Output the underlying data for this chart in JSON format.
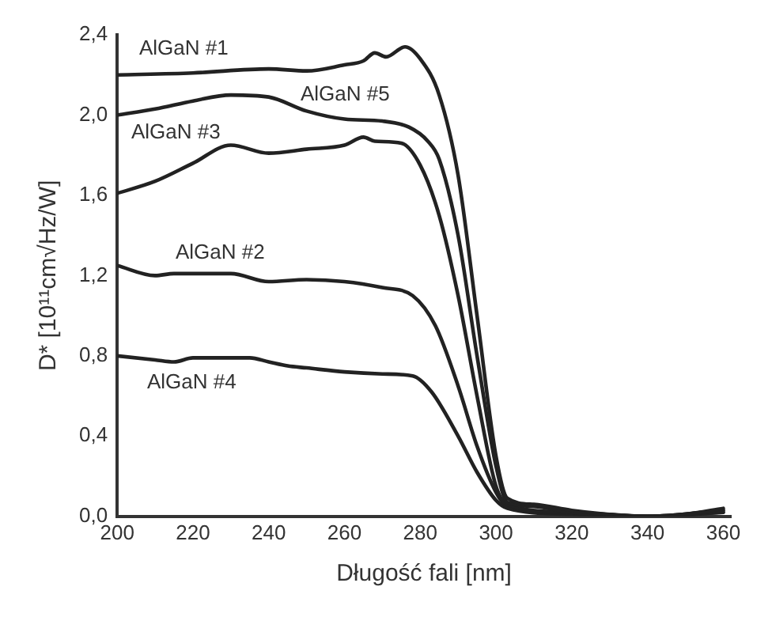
{
  "chart_data": {
    "type": "line",
    "xlabel": "Długość fali [nm]",
    "ylabel": "D* [10¹¹cm√Hz/W]",
    "xlim": [
      200,
      362
    ],
    "xticks": [
      200,
      220,
      240,
      260,
      280,
      300,
      320,
      340,
      360
    ],
    "ylim": [
      0,
      2.4
    ],
    "yticks": [
      {
        "value": 0,
        "label": "0,0"
      },
      {
        "value": 0.4,
        "label": "0,4"
      },
      {
        "value": 0.8,
        "label": "0,8"
      },
      {
        "value": 1.2,
        "label": "1,2"
      },
      {
        "value": 1.6,
        "label": "1,6"
      },
      {
        "value": 2.0,
        "label": "2,0"
      },
      {
        "value": 2.4,
        "label": "2,4"
      }
    ],
    "grid": false,
    "legend": false,
    "marker": "none",
    "line_style": "solid",
    "series": [
      {
        "name": "AlGaN #1",
        "color": "#222222",
        "x": [
          200,
          220,
          240,
          250,
          260,
          265,
          268,
          271,
          276,
          280,
          285,
          290,
          295,
          300,
          303,
          310,
          320,
          330,
          340,
          350,
          360
        ],
        "values": [
          2.2,
          2.21,
          2.23,
          2.22,
          2.25,
          2.27,
          2.31,
          2.29,
          2.34,
          2.28,
          2.1,
          1.7,
          1.0,
          0.3,
          0.09,
          0.06,
          0.03,
          0.01,
          0.0,
          0.01,
          0.04
        ]
      },
      {
        "name": "AlGaN #5",
        "color": "#222222",
        "x": [
          200,
          210,
          220,
          230,
          240,
          250,
          260,
          270,
          277,
          282,
          285,
          290,
          295,
          300,
          303,
          310,
          320,
          340,
          360
        ],
        "values": [
          2.0,
          2.03,
          2.07,
          2.1,
          2.09,
          2.02,
          1.98,
          1.97,
          1.94,
          1.87,
          1.78,
          1.4,
          0.8,
          0.25,
          0.07,
          0.05,
          0.02,
          0.0,
          0.03
        ]
      },
      {
        "name": "AlGaN #3",
        "color": "#222222",
        "x": [
          200,
          210,
          220,
          230,
          240,
          250,
          260,
          265,
          268,
          275,
          280,
          285,
          290,
          295,
          300,
          303,
          320,
          340,
          360
        ],
        "values": [
          1.61,
          1.67,
          1.76,
          1.85,
          1.81,
          1.83,
          1.85,
          1.89,
          1.87,
          1.86,
          1.75,
          1.5,
          1.1,
          0.6,
          0.15,
          0.06,
          0.02,
          0.0,
          0.03
        ]
      },
      {
        "name": "AlGaN #2",
        "color": "#222222",
        "x": [
          200,
          210,
          215,
          230,
          240,
          250,
          260,
          270,
          278,
          284,
          290,
          295,
          300,
          303,
          320,
          340,
          360
        ],
        "values": [
          1.25,
          1.2,
          1.21,
          1.21,
          1.17,
          1.18,
          1.17,
          1.14,
          1.1,
          0.95,
          0.65,
          0.35,
          0.12,
          0.05,
          0.02,
          0.0,
          0.02
        ]
      },
      {
        "name": "AlGaN #4",
        "color": "#222222",
        "x": [
          200,
          210,
          215,
          220,
          235,
          240,
          245,
          250,
          260,
          270,
          278,
          283,
          290,
          295,
          300,
          303,
          320,
          340,
          360
        ],
        "values": [
          0.8,
          0.78,
          0.77,
          0.79,
          0.79,
          0.77,
          0.75,
          0.74,
          0.72,
          0.71,
          0.7,
          0.62,
          0.4,
          0.22,
          0.08,
          0.04,
          0.01,
          0.0,
          0.02
        ]
      }
    ]
  }
}
